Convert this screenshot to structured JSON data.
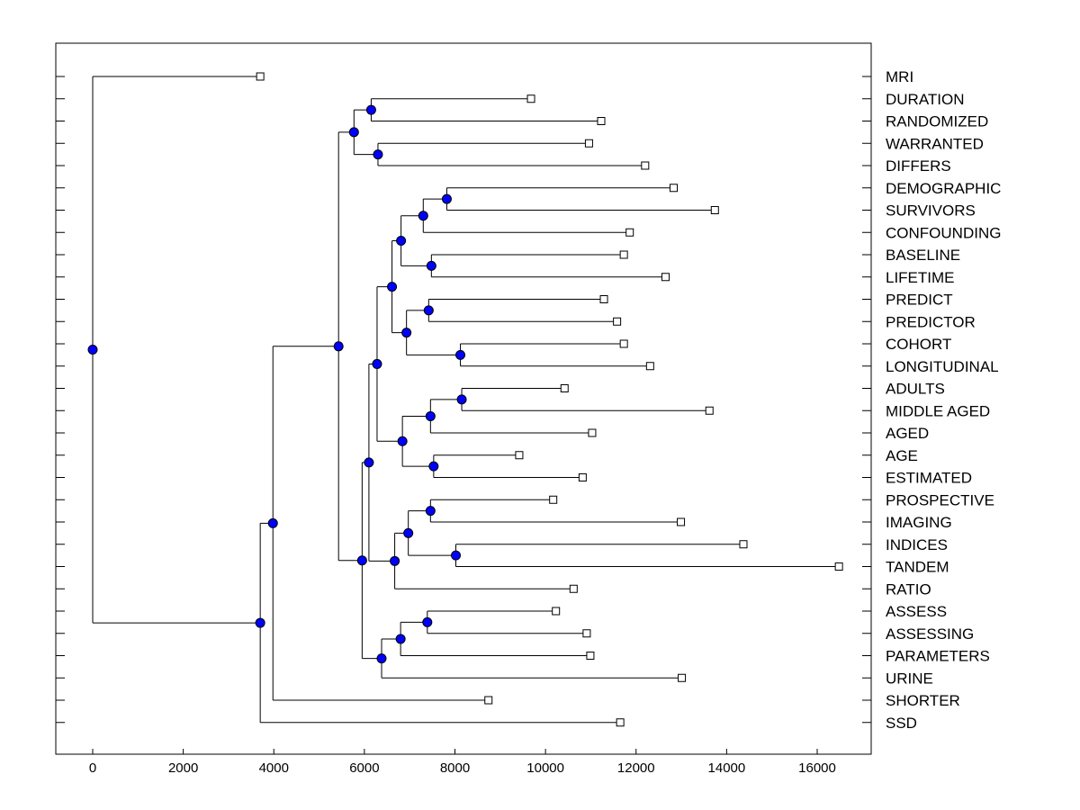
{
  "chart_data": {
    "type": "dendrogram",
    "title": "",
    "xlabel": "",
    "ylabel": "",
    "xlim": [
      -800,
      17300
    ],
    "xticks": [
      0,
      2000,
      4000,
      6000,
      8000,
      10000,
      12000,
      14000,
      16000
    ],
    "xtick_labels": [
      "0",
      "2000",
      "4000",
      "6000",
      "8000",
      "10000",
      "12000",
      "14000",
      "16000"
    ],
    "grid": false,
    "colors": {
      "node_fill": "#0000ff",
      "leaf_fill": "#ffffff",
      "line": "#000000"
    },
    "leaves": [
      {
        "label": "MRI",
        "x": 3700
      },
      {
        "label": "DURATION",
        "x": 9680
      },
      {
        "label": "RANDOMIZED",
        "x": 11230
      },
      {
        "label": "WARRANTED",
        "x": 10960
      },
      {
        "label": "DIFFERS",
        "x": 12200
      },
      {
        "label": "DEMOGRAPHIC",
        "x": 12830
      },
      {
        "label": "SURVIVORS",
        "x": 13740
      },
      {
        "label": "CONFOUNDING",
        "x": 11860
      },
      {
        "label": "BASELINE",
        "x": 11730
      },
      {
        "label": "LIFETIME",
        "x": 12650
      },
      {
        "label": "PREDICT",
        "x": 11290
      },
      {
        "label": "PREDICTOR",
        "x": 11580
      },
      {
        "label": "COHORT",
        "x": 11730
      },
      {
        "label": "LONGITUDINAL",
        "x": 12310
      },
      {
        "label": "ADULTS",
        "x": 10420
      },
      {
        "label": "MIDDLE AGED",
        "x": 13620
      },
      {
        "label": "AGED",
        "x": 11030
      },
      {
        "label": "AGE",
        "x": 9420
      },
      {
        "label": "ESTIMATED",
        "x": 10820
      },
      {
        "label": "PROSPECTIVE",
        "x": 10170
      },
      {
        "label": "IMAGING",
        "x": 12990
      },
      {
        "label": "INDICES",
        "x": 14370
      },
      {
        "label": "TANDEM",
        "x": 16480
      },
      {
        "label": "RATIO",
        "x": 10620
      },
      {
        "label": "ASSESS",
        "x": 10230
      },
      {
        "label": "ASSESSING",
        "x": 10910
      },
      {
        "label": "PARAMETERS",
        "x": 10990
      },
      {
        "label": "URINE",
        "x": 13010
      },
      {
        "label": "SHORTER",
        "x": 8740
      },
      {
        "label": "SSD",
        "x": 11650
      }
    ],
    "merges": [
      {
        "id": "n1",
        "x": 6150,
        "children": [
          "L1",
          "L2"
        ]
      },
      {
        "id": "n2",
        "x": 6300,
        "children": [
          "L3",
          "L4"
        ]
      },
      {
        "id": "n3",
        "x": 5770,
        "children": [
          "n1",
          "n2"
        ]
      },
      {
        "id": "n4",
        "x": 7820,
        "children": [
          "L5",
          "L6"
        ]
      },
      {
        "id": "n5",
        "x": 7300,
        "children": [
          "n4",
          "L7"
        ]
      },
      {
        "id": "n6",
        "x": 7480,
        "children": [
          "L8",
          "L9"
        ]
      },
      {
        "id": "n7",
        "x": 6810,
        "children": [
          "n5",
          "n6"
        ]
      },
      {
        "id": "n8",
        "x": 7420,
        "children": [
          "L10",
          "L11"
        ]
      },
      {
        "id": "n9",
        "x": 8120,
        "children": [
          "L12",
          "L13"
        ]
      },
      {
        "id": "n10",
        "x": 6930,
        "children": [
          "n8",
          "n9"
        ]
      },
      {
        "id": "n11",
        "x": 6610,
        "children": [
          "n7",
          "n10"
        ]
      },
      {
        "id": "n12",
        "x": 8150,
        "children": [
          "L14",
          "L15"
        ]
      },
      {
        "id": "n13",
        "x": 7460,
        "children": [
          "n12",
          "L16"
        ]
      },
      {
        "id": "n14",
        "x": 7530,
        "children": [
          "L17",
          "L18"
        ]
      },
      {
        "id": "n15",
        "x": 6840,
        "children": [
          "n13",
          "n14"
        ]
      },
      {
        "id": "n16",
        "x": 6280,
        "children": [
          "n11",
          "n15"
        ]
      },
      {
        "id": "n17",
        "x": 7460,
        "children": [
          "L19",
          "L20"
        ]
      },
      {
        "id": "n18",
        "x": 8020,
        "children": [
          "L21",
          "L22"
        ]
      },
      {
        "id": "n19",
        "x": 6970,
        "children": [
          "n17",
          "n18"
        ]
      },
      {
        "id": "n20",
        "x": 6670,
        "children": [
          "n19",
          "L23"
        ]
      },
      {
        "id": "n21",
        "x": 6100,
        "children": [
          "n16",
          "n20"
        ]
      },
      {
        "id": "n22",
        "x": 7390,
        "children": [
          "L24",
          "L25"
        ]
      },
      {
        "id": "n23",
        "x": 6800,
        "children": [
          "n22",
          "L26"
        ]
      },
      {
        "id": "n24",
        "x": 6380,
        "children": [
          "n23",
          "L27"
        ]
      },
      {
        "id": "n25",
        "x": 5950,
        "children": [
          "n21",
          "n24"
        ]
      },
      {
        "id": "n26",
        "x": 5430,
        "children": [
          "n3",
          "n25"
        ]
      },
      {
        "id": "n27",
        "x": 3980,
        "children": [
          "n26",
          "L28"
        ]
      },
      {
        "id": "n28",
        "x": 3700,
        "children": [
          "n27",
          "L29"
        ]
      },
      {
        "id": "n29",
        "x": 0,
        "children": [
          "L0",
          "n28"
        ]
      }
    ]
  }
}
